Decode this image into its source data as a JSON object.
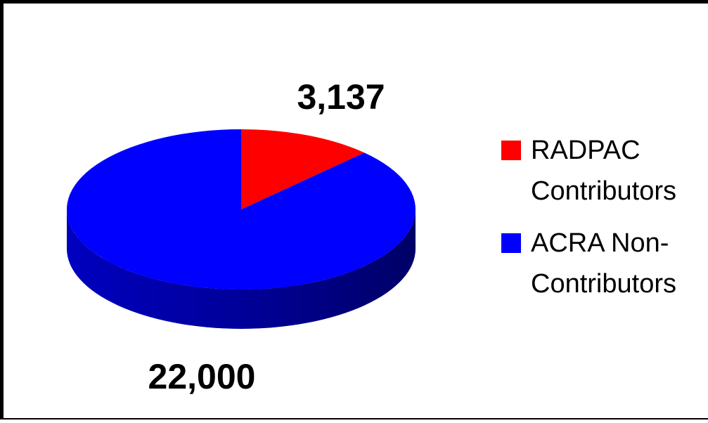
{
  "chart_data": {
    "type": "pie",
    "categories": [
      "RADPAC Contributors",
      "ACRA Non-Contributors"
    ],
    "values": [
      3137,
      22000
    ],
    "value_labels": [
      "3,137",
      "22,000"
    ],
    "colors": [
      "#ff0000",
      "#0000ff"
    ],
    "legend": "right"
  }
}
